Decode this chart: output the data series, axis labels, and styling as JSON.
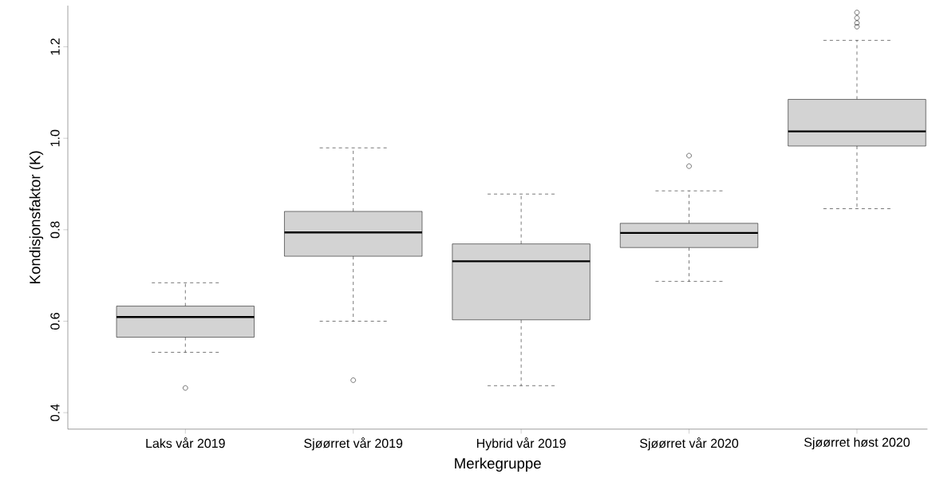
{
  "chart_data": {
    "type": "box",
    "xlabel": "Merkegruppe",
    "ylabel": "Kondisjonsfaktor (K)",
    "categories": [
      "Laks vår 2019",
      "Sjøørret vår 2019",
      "Hybrid vår 2019",
      "Sjøørret vår 2020",
      "Sjøørret høst 2020"
    ],
    "color": "#d3d3d3",
    "boxes": [
      {
        "low": 0.532,
        "q1": 0.565,
        "median": 0.609,
        "q3": 0.633,
        "high": 0.684,
        "outliers": [
          0.454
        ]
      },
      {
        "low": 0.6,
        "q1": 0.742,
        "median": 0.794,
        "q3": 0.84,
        "high": 0.979,
        "outliers": [
          0.471
        ]
      },
      {
        "low": 0.459,
        "q1": 0.603,
        "median": 0.731,
        "q3": 0.769,
        "high": 0.878
      },
      {
        "low": 0.687,
        "q1": 0.761,
        "median": 0.793,
        "q3": 0.814,
        "high": 0.885,
        "outliers": [
          0.939,
          0.962
        ]
      },
      {
        "low": 0.846,
        "q1": 0.983,
        "median": 1.015,
        "q3": 1.085,
        "high": 1.214,
        "outliers": [
          1.244,
          1.252,
          1.263,
          1.275
        ]
      }
    ],
    "ylim": [
      0.364,
      1.29
    ],
    "yticks": [
      0.4,
      0.6,
      0.8,
      {
        "value": 1.0,
        "label": "1.0"
      },
      1.2
    ]
  }
}
